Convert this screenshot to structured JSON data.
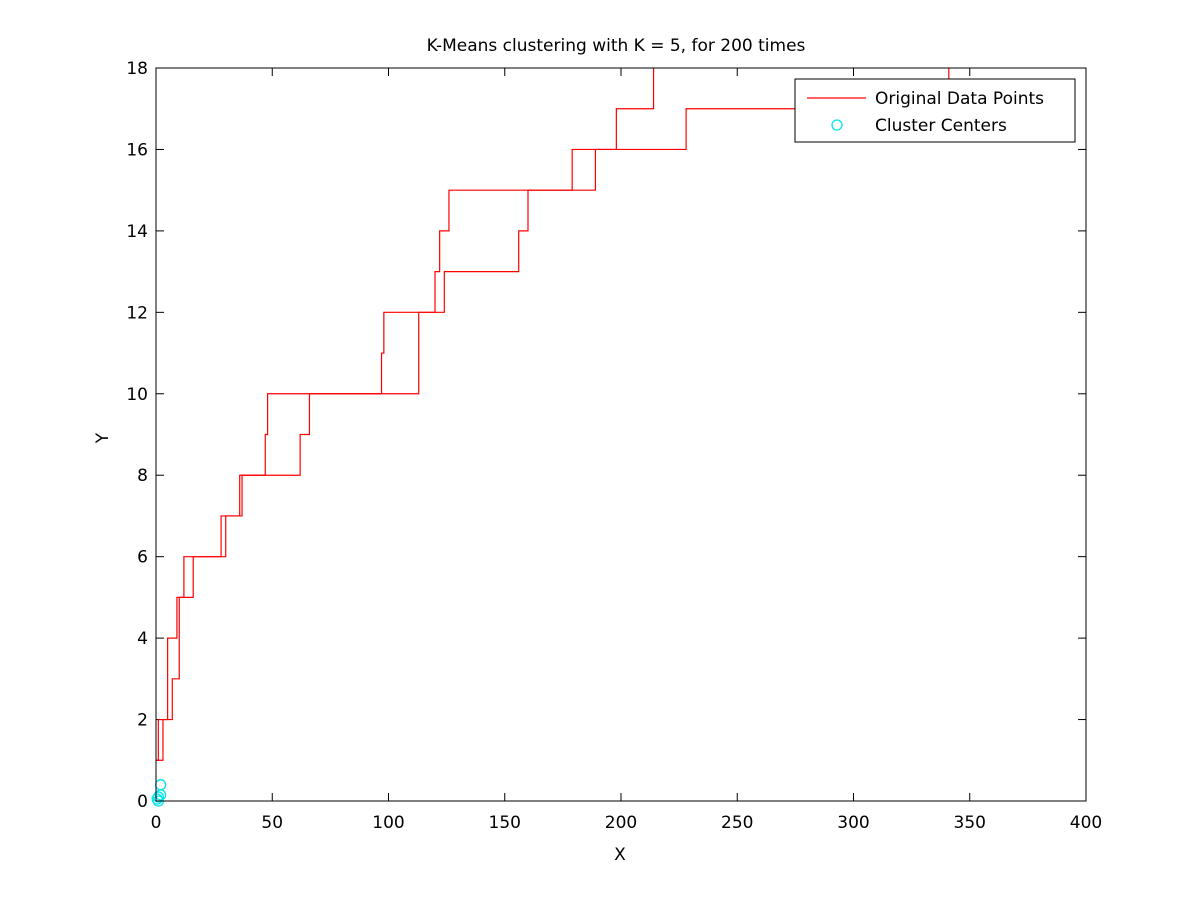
{
  "chart_data": {
    "type": "line",
    "title": "K-Means clustering with K = 5, for 200 times",
    "xlabel": "X",
    "ylabel": "Y",
    "xlim": [
      0,
      400
    ],
    "ylim": [
      0,
      18
    ],
    "xticks": [
      0,
      50,
      100,
      150,
      200,
      250,
      300,
      350,
      400
    ],
    "yticks": [
      0,
      2,
      4,
      6,
      8,
      10,
      12,
      14,
      16,
      18
    ],
    "grid": false,
    "legend_position": "top-right",
    "series": [
      {
        "name": "Original Data Points",
        "kind": "step-line",
        "color": "#ff0000",
        "points": [
          [
            0,
            1
          ],
          [
            1,
            1
          ],
          [
            1,
            2
          ],
          [
            5,
            2
          ],
          [
            5,
            4
          ],
          [
            9,
            4
          ],
          [
            9,
            5
          ],
          [
            12,
            5
          ],
          [
            12,
            6
          ],
          [
            16,
            6
          ],
          [
            16,
            6
          ],
          [
            28,
            6
          ],
          [
            28,
            7
          ],
          [
            36,
            7
          ],
          [
            36,
            8
          ],
          [
            47,
            8
          ],
          [
            47,
            9
          ],
          [
            48,
            9
          ],
          [
            48,
            10
          ],
          [
            97,
            10
          ],
          [
            97,
            11
          ],
          [
            98,
            11
          ],
          [
            98,
            12
          ],
          [
            120,
            12
          ],
          [
            120,
            13
          ],
          [
            122,
            13
          ],
          [
            122,
            14
          ],
          [
            126,
            14
          ],
          [
            126,
            15
          ],
          [
            179,
            15
          ],
          [
            179,
            16
          ],
          [
            198,
            16
          ],
          [
            198,
            17
          ],
          [
            214,
            17
          ],
          [
            214,
            18
          ]
        ]
      },
      {
        "name": "Original Data Points",
        "kind": "step-line",
        "color": "#ff0000",
        "points": [
          [
            0,
            1
          ],
          [
            3,
            1
          ],
          [
            3,
            2
          ],
          [
            7,
            2
          ],
          [
            7,
            3
          ],
          [
            10,
            3
          ],
          [
            10,
            5
          ],
          [
            16,
            5
          ],
          [
            16,
            6
          ],
          [
            30,
            6
          ],
          [
            30,
            7
          ],
          [
            37,
            7
          ],
          [
            37,
            8
          ],
          [
            62,
            8
          ],
          [
            62,
            9
          ],
          [
            66,
            9
          ],
          [
            66,
            10
          ],
          [
            113,
            10
          ],
          [
            113,
            12
          ],
          [
            124,
            12
          ],
          [
            124,
            13
          ],
          [
            156,
            13
          ],
          [
            156,
            14
          ],
          [
            160,
            14
          ],
          [
            160,
            15
          ],
          [
            189,
            15
          ],
          [
            189,
            16
          ],
          [
            228,
            16
          ],
          [
            228,
            17
          ],
          [
            341,
            17
          ],
          [
            341,
            18
          ]
        ]
      },
      {
        "name": "Cluster Centers",
        "kind": "markers",
        "marker": "circle",
        "color": "#00e5ee",
        "points": [
          [
            2,
            0.4
          ],
          [
            1,
            0.1
          ],
          [
            1,
            0.0
          ],
          [
            2,
            0.15
          ],
          [
            0.5,
            0.05
          ]
        ]
      }
    ],
    "legend": [
      {
        "label": "Original Data Points",
        "style": "line",
        "color": "#ff0000"
      },
      {
        "label": "Cluster Centers",
        "style": "circle",
        "color": "#00e5ee"
      }
    ]
  }
}
